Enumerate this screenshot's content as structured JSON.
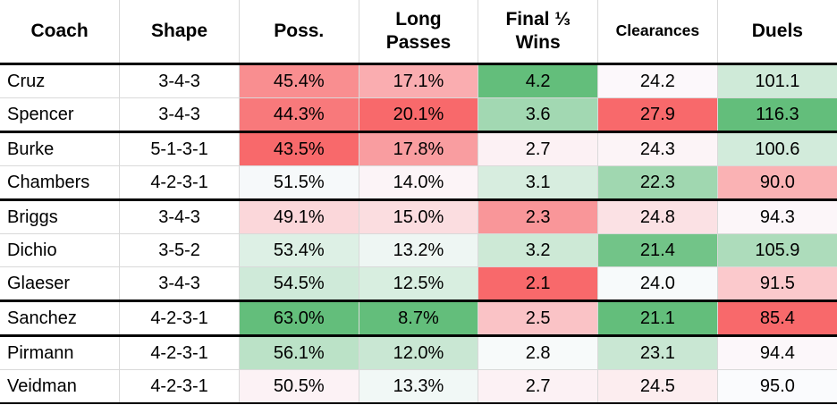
{
  "chart_data": {
    "type": "table",
    "subtype": "heatmap-table",
    "legend_position": "none",
    "columns": [
      {
        "key": "coach",
        "label": "Coach",
        "align": "left"
      },
      {
        "key": "shape",
        "label": "Shape",
        "align": "center"
      },
      {
        "key": "poss",
        "label": "Poss.",
        "align": "center",
        "scale": {
          "min": 43.5,
          "mid": 51.0,
          "max": 63.0,
          "high_is": "green"
        }
      },
      {
        "key": "long_passes",
        "label": "Long Passes",
        "align": "center",
        "scale": {
          "min": 8.7,
          "mid": 13.65,
          "max": 20.1,
          "high_is": "red"
        }
      },
      {
        "key": "final_third_wins",
        "label": "Final ⅓ Wins",
        "align": "center",
        "scale": {
          "min": 2.1,
          "mid": 2.75,
          "max": 4.2,
          "high_is": "green"
        }
      },
      {
        "key": "clearances",
        "label": "Clearances",
        "align": "center",
        "compact_header": true,
        "scale": {
          "min": 21.1,
          "mid": 24.1,
          "max": 27.9,
          "high_is": "red"
        }
      },
      {
        "key": "duels",
        "label": "Duels",
        "align": "center",
        "scale": {
          "min": 85.4,
          "mid": 94.7,
          "max": 116.3,
          "high_is": "green"
        }
      }
    ],
    "rows": [
      {
        "group_start": false,
        "coach": "Cruz",
        "shape": "3-4-3",
        "poss": "45.4%",
        "long_passes": "17.1%",
        "final_third_wins": "4.2",
        "clearances": "24.2",
        "duels": "101.1"
      },
      {
        "group_start": false,
        "coach": "Spencer",
        "shape": "3-4-3",
        "poss": "44.3%",
        "long_passes": "20.1%",
        "final_third_wins": "3.6",
        "clearances": "27.9",
        "duels": "116.3"
      },
      {
        "group_start": true,
        "coach": "Burke",
        "shape": "5-1-3-1",
        "poss": "43.5%",
        "long_passes": "17.8%",
        "final_third_wins": "2.7",
        "clearances": "24.3",
        "duels": "100.6"
      },
      {
        "group_start": false,
        "coach": "Chambers",
        "shape": "4-2-3-1",
        "poss": "51.5%",
        "long_passes": "14.0%",
        "final_third_wins": "3.1",
        "clearances": "22.3",
        "duels": "90.0"
      },
      {
        "group_start": true,
        "coach": "Briggs",
        "shape": "3-4-3",
        "poss": "49.1%",
        "long_passes": "15.0%",
        "final_third_wins": "2.3",
        "clearances": "24.8",
        "duels": "94.3"
      },
      {
        "group_start": false,
        "coach": "Dichio",
        "shape": "3-5-2",
        "poss": "53.4%",
        "long_passes": "13.2%",
        "final_third_wins": "3.2",
        "clearances": "21.4",
        "duels": "105.9"
      },
      {
        "group_start": false,
        "coach": "Glaeser",
        "shape": "3-4-3",
        "poss": "54.5%",
        "long_passes": "12.5%",
        "final_third_wins": "2.1",
        "clearances": "24.0",
        "duels": "91.5"
      },
      {
        "group_start": true,
        "coach": "Sanchez",
        "shape": "4-2-3-1",
        "poss": "63.0%",
        "long_passes": "8.7%",
        "final_third_wins": "2.5",
        "clearances": "21.1",
        "duels": "85.4"
      },
      {
        "group_start": true,
        "coach": "Pirmann",
        "shape": "4-2-3-1",
        "poss": "56.1%",
        "long_passes": "12.0%",
        "final_third_wins": "2.8",
        "clearances": "23.1",
        "duels": "94.4"
      },
      {
        "group_start": false,
        "coach": "Veidman",
        "shape": "4-2-3-1",
        "poss": "50.5%",
        "long_passes": "13.3%",
        "final_third_wins": "2.7",
        "clearances": "24.5",
        "duels": "95.0"
      }
    ],
    "colors": {
      "negative": "#F8696B",
      "neutral": "#FCFCFF",
      "positive": "#63BE7B",
      "grid": "#D9D9D9",
      "divider": "#000000",
      "text": "#000000",
      "background": "#FFFFFF"
    }
  }
}
